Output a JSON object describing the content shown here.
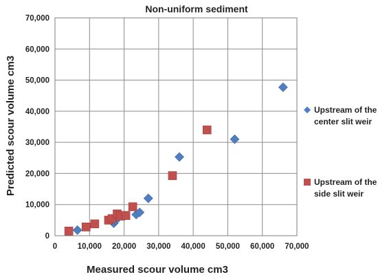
{
  "chart_data": {
    "type": "scatter",
    "title": "Non-uniform sediment",
    "xlabel": "Measured scour volume cm3",
    "ylabel": "Predicted scour volume cm3",
    "xlim": [
      0,
      70000
    ],
    "ylim": [
      0,
      70000
    ],
    "xticks": [
      0,
      10000,
      20000,
      30000,
      40000,
      50000,
      60000,
      70000
    ],
    "yticks": [
      0,
      10000,
      20000,
      30000,
      40000,
      50000,
      60000,
      70000
    ],
    "xtick_labels": [
      "0",
      "10,000",
      "20,000",
      "30,000",
      "40,000",
      "50,000",
      "60,000",
      "70,000"
    ],
    "ytick_labels": [
      "0",
      "10,000",
      "20,000",
      "30,000",
      "40,000",
      "50,000",
      "60,000",
      "70,000"
    ],
    "grid": true,
    "legend_position": "right",
    "series": [
      {
        "name": "Upstream of the center slit weir",
        "name_lines": [
          "Upstream of the",
          "center slit weir"
        ],
        "marker": "diamond",
        "color": "#4F7FC0",
        "x": [
          6500,
          17000,
          17500,
          23500,
          24500,
          27000,
          36000,
          52000,
          66000
        ],
        "y": [
          1800,
          4000,
          4800,
          6800,
          7500,
          12000,
          25300,
          31000,
          47700
        ]
      },
      {
        "name": "Upstream of the side slit weir",
        "name_lines": [
          "Upstream of the",
          "side slit weir"
        ],
        "marker": "square",
        "color": "#C0504D",
        "x": [
          4000,
          9000,
          11500,
          15500,
          16500,
          18000,
          19000,
          20500,
          22500,
          34000,
          44000
        ],
        "y": [
          1500,
          2800,
          3800,
          5000,
          5500,
          7000,
          6300,
          6500,
          9300,
          19300,
          34000
        ]
      }
    ]
  }
}
